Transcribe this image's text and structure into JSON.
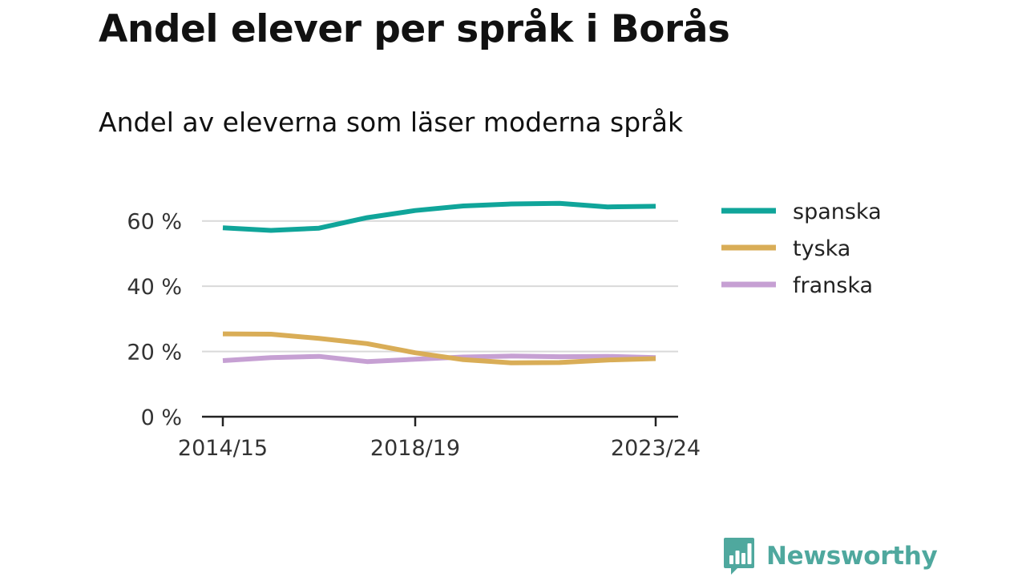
{
  "title": "Andel elever per språk i Borås",
  "subtitle": "Andel av eleverna som läser moderna språk",
  "brand": {
    "name": "Newsworthy",
    "icon": "bar-chart-speech-bubble-icon",
    "color": "#4fa89e"
  },
  "chart_data": {
    "type": "line",
    "title": "Andel elever per språk i Borås",
    "subtitle": "Andel av eleverna som läser moderna språk",
    "xlabel": "",
    "ylabel": "",
    "x": [
      "2014/15",
      "2015/16",
      "2016/17",
      "2017/18",
      "2018/19",
      "2019/20",
      "2020/21",
      "2021/22",
      "2022/23",
      "2023/24"
    ],
    "x_tick_labels": [
      "2014/15",
      "2018/19",
      "2023/24"
    ],
    "y_ticks": [
      0,
      20,
      40,
      60
    ],
    "y_tick_labels": [
      "0 %",
      "20 %",
      "40 %",
      "60 %"
    ],
    "ylim": [
      0,
      70
    ],
    "grid": true,
    "legend_position": "right",
    "series": [
      {
        "name": "spanska",
        "color": "#10a59a",
        "values": [
          57.9,
          57.1,
          57.8,
          61.0,
          63.2,
          64.6,
          65.2,
          65.4,
          64.3,
          64.5
        ]
      },
      {
        "name": "tyska",
        "color": "#d9ad57",
        "values": [
          25.4,
          25.3,
          24.0,
          22.4,
          19.6,
          17.5,
          16.5,
          16.6,
          17.4,
          17.8
        ]
      },
      {
        "name": "franska",
        "color": "#c6a0d3",
        "values": [
          17.2,
          18.1,
          18.5,
          16.9,
          17.6,
          18.3,
          18.6,
          18.4,
          18.5,
          18.1
        ]
      }
    ]
  }
}
